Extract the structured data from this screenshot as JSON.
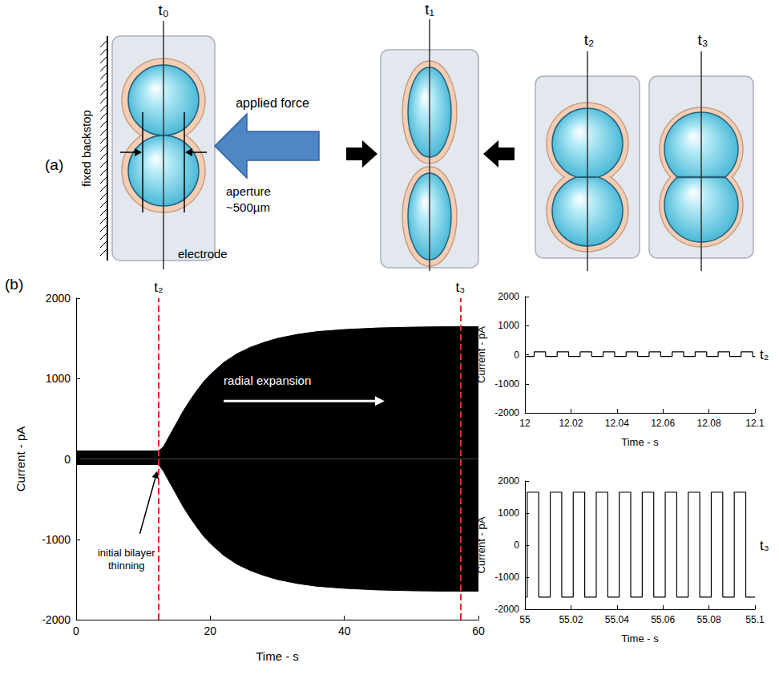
{
  "panel_a": {
    "label": "(a)",
    "stages": [
      "t₀",
      "t₁",
      "t₂",
      "t₃"
    ],
    "backstop": "fixed backstop",
    "force": "applied force",
    "aperture": [
      "aperture",
      "~500µm"
    ],
    "electrode": "electrode"
  },
  "panel_b": {
    "label": "(b)"
  },
  "chart_data": [
    {
      "type": "area",
      "x_label": "Time - s",
      "y_label": "Current - pA",
      "x": [
        0,
        12.3,
        13,
        14,
        15,
        16,
        17,
        18,
        19,
        20,
        22,
        24,
        26,
        28,
        30,
        33,
        36,
        40,
        45,
        50,
        55,
        60
      ],
      "series": [
        {
          "color": "#000000",
          "values": [
            100,
            100,
            150,
            300,
            450,
            600,
            730,
            850,
            960,
            1050,
            1200,
            1310,
            1390,
            1450,
            1500,
            1550,
            1585,
            1610,
            1630,
            1640,
            1645,
            1645
          ]
        },
        {
          "color": "#000000",
          "values": [
            -70,
            -70,
            -150,
            -300,
            -450,
            -600,
            -730,
            -850,
            -960,
            -1050,
            -1200,
            -1310,
            -1390,
            -1450,
            -1500,
            -1550,
            -1585,
            -1610,
            -1630,
            -1640,
            -1645,
            -1645
          ]
        }
      ],
      "xlim": [
        0,
        60
      ],
      "xticks": [
        0,
        20,
        40,
        60
      ],
      "ylim": [
        -2000,
        2000
      ],
      "yticks": [
        -2000,
        -1000,
        0,
        1000,
        2000
      ],
      "grid": false,
      "markers": [
        {
          "x": 12.3,
          "label": "t₂"
        },
        {
          "x": 57.3,
          "label": "t₃"
        }
      ],
      "annotations": [
        "initial bilayer thinning",
        "radial expansion"
      ]
    },
    {
      "type": "line",
      "line_style": "step",
      "label": "t₂",
      "x_label": "Time - s",
      "y_label": "Current - pA",
      "color": "#000000",
      "x": [
        12,
        12.004,
        12.009,
        12.014,
        12.019,
        12.024,
        12.029,
        12.034,
        12.039,
        12.044,
        12.049,
        12.054,
        12.059,
        12.064,
        12.069,
        12.074,
        12.079,
        12.084,
        12.089,
        12.094,
        12.099,
        12.1
      ],
      "values": [
        -60,
        100,
        -60,
        100,
        -60,
        100,
        -60,
        100,
        -60,
        100,
        -60,
        100,
        -60,
        100,
        -60,
        100,
        -60,
        100,
        -60,
        100,
        -60,
        -60
      ],
      "xlim": [
        12,
        12.1
      ],
      "xticks": [
        12,
        12.02,
        12.04,
        12.06,
        12.08,
        12.1
      ],
      "ylim": [
        -2000,
        2000
      ],
      "yticks": [
        -2000,
        -1000,
        0,
        1000,
        2000
      ],
      "grid": false
    },
    {
      "type": "line",
      "line_style": "step",
      "label": "t₃",
      "x_label": "Time - s",
      "y_label": "Current - pA",
      "color": "#000000",
      "x": [
        55,
        55.001,
        55.006,
        55.011,
        55.016,
        55.021,
        55.026,
        55.031,
        55.036,
        55.041,
        55.046,
        55.051,
        55.056,
        55.061,
        55.066,
        55.071,
        55.076,
        55.081,
        55.086,
        55.091,
        55.096,
        55.1
      ],
      "values": [
        -1620,
        1650,
        -1620,
        1650,
        -1620,
        1650,
        -1620,
        1650,
        -1620,
        1650,
        -1620,
        1650,
        -1620,
        1650,
        -1620,
        1650,
        -1620,
        1650,
        -1620,
        1650,
        -1620,
        -1620
      ],
      "xlim": [
        55,
        55.1
      ],
      "xticks": [
        55,
        55.02,
        55.04,
        55.06,
        55.08,
        55.1
      ],
      "ylim": [
        -2000,
        2000
      ],
      "yticks": [
        -2000,
        -1000,
        0,
        1000,
        2000
      ],
      "grid": false
    }
  ]
}
